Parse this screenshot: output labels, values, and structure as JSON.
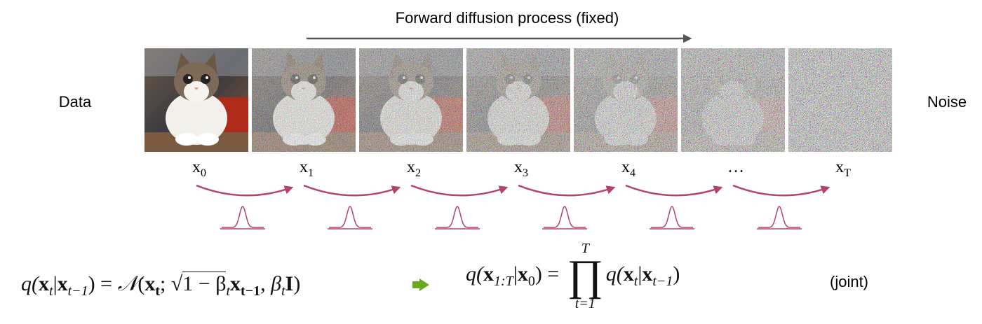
{
  "title": "Forward diffusion process (fixed)",
  "left_label": "Data",
  "right_label": "Noise",
  "frames": [
    {
      "label": "x",
      "subscript": "0"
    },
    {
      "label": "x",
      "subscript": "1"
    },
    {
      "label": "x",
      "subscript": "2"
    },
    {
      "label": "x",
      "subscript": "3"
    },
    {
      "label": "x",
      "subscript": "4"
    },
    {
      "label": "…"
    },
    {
      "label": "x",
      "subscript": "T"
    }
  ],
  "step_formula": [
    [
      "q(",
      "i"
    ],
    [
      "x",
      "b"
    ],
    [
      "t",
      "isub"
    ],
    [
      "|",
      ""
    ],
    [
      "x",
      "b"
    ],
    [
      "t−1",
      "isub"
    ],
    [
      ") = ",
      ""
    ],
    [
      "𝒩",
      "cal"
    ],
    [
      "(",
      ""
    ],
    [
      "x",
      "b"
    ],
    [
      "t",
      "bsub"
    ],
    [
      "; ",
      ""
    ],
    [
      "√",
      "sqrt"
    ],
    [
      "1 − β",
      "over"
    ],
    [
      "t",
      "isub"
    ],
    [
      "x",
      "b"
    ],
    [
      "t−1",
      "bsub"
    ],
    [
      ", β",
      "i"
    ],
    [
      "t",
      "isub"
    ],
    [
      "I",
      "b"
    ],
    [
      ")",
      ""
    ]
  ],
  "joint_formula": {
    "left": [
      [
        "q(",
        "i"
      ],
      [
        "x",
        "b"
      ],
      [
        "1:T",
        "isub"
      ],
      [
        "|",
        ""
      ],
      [
        "x",
        "b"
      ],
      [
        "0",
        "sub"
      ],
      [
        ") = ",
        ""
      ]
    ],
    "product_upper": "T",
    "product_lower": "t=1",
    "right": [
      [
        "q(",
        "i"
      ],
      [
        "x",
        "b"
      ],
      [
        "t",
        "isub"
      ],
      [
        "|",
        ""
      ],
      [
        "x",
        "b"
      ],
      [
        "t−1",
        "isub"
      ],
      [
        ")",
        ""
      ]
    ]
  },
  "joint_label": "(joint)"
}
